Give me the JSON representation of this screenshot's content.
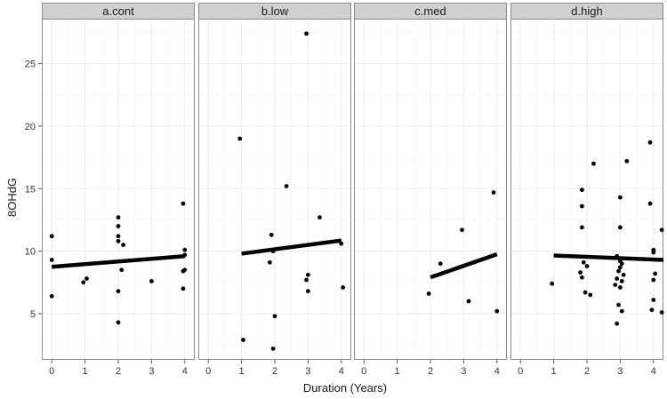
{
  "chart_data": {
    "type": "scatter",
    "faceted": true,
    "xlabel": "Duration (Years)",
    "ylabel": "8OHdG",
    "xlim": [
      -0.3,
      4.3
    ],
    "ylim": [
      1.3,
      28.6
    ],
    "x_ticks": [
      "0",
      "1",
      "2",
      "3",
      "4"
    ],
    "y_ticks": [
      "5",
      "10",
      "15",
      "20",
      "25"
    ],
    "grid": true,
    "legend": "none",
    "colors": {
      "point": "#000000",
      "line": "#000000",
      "strip": "#d0d0d0",
      "grid": "#ebebeb",
      "border": "#8c8c8c"
    },
    "panels": [
      {
        "label": "a.cont",
        "points": [
          [
            0.0,
            11.2
          ],
          [
            0.0,
            9.3
          ],
          [
            0.0,
            6.4
          ],
          [
            0.95,
            7.5
          ],
          [
            1.05,
            7.8
          ],
          [
            2.0,
            12.7
          ],
          [
            2.0,
            12.0
          ],
          [
            2.0,
            11.2
          ],
          [
            2.0,
            10.8
          ],
          [
            2.15,
            10.5
          ],
          [
            2.1,
            8.5
          ],
          [
            2.0,
            6.8
          ],
          [
            2.0,
            4.3
          ],
          [
            3.0,
            7.6
          ],
          [
            3.95,
            13.8
          ],
          [
            4.0,
            10.1
          ],
          [
            4.0,
            9.7
          ],
          [
            4.0,
            8.5
          ],
          [
            3.95,
            8.4
          ],
          [
            3.95,
            7.0
          ]
        ],
        "fit": [
          [
            0,
            8.75
          ],
          [
            4,
            9.6
          ]
        ]
      },
      {
        "label": "b.low",
        "points": [
          [
            0.95,
            19.0
          ],
          [
            1.05,
            2.9
          ],
          [
            1.9,
            11.3
          ],
          [
            1.95,
            10.0
          ],
          [
            1.85,
            9.1
          ],
          [
            2.0,
            4.8
          ],
          [
            1.95,
            2.2
          ],
          [
            2.35,
            15.2
          ],
          [
            2.95,
            27.4
          ],
          [
            3.0,
            8.1
          ],
          [
            2.95,
            7.7
          ],
          [
            3.0,
            6.8
          ],
          [
            3.35,
            12.7
          ],
          [
            4.0,
            10.6
          ],
          [
            4.05,
            7.1
          ]
        ],
        "fit": [
          [
            1,
            9.8
          ],
          [
            4,
            10.85
          ]
        ]
      },
      {
        "label": "c.med",
        "points": [
          [
            1.95,
            6.6
          ],
          [
            2.3,
            9.0
          ],
          [
            2.95,
            11.7
          ],
          [
            3.15,
            6.0
          ],
          [
            3.9,
            14.7
          ],
          [
            4.0,
            5.2
          ]
        ],
        "fit": [
          [
            2,
            7.9
          ],
          [
            4,
            9.75
          ]
        ]
      },
      {
        "label": "d.high",
        "points": [
          [
            0.95,
            7.4
          ],
          [
            1.85,
            14.9
          ],
          [
            1.85,
            13.6
          ],
          [
            1.85,
            11.9
          ],
          [
            2.2,
            17.0
          ],
          [
            1.9,
            9.1
          ],
          [
            2.0,
            8.8
          ],
          [
            1.8,
            8.3
          ],
          [
            1.85,
            7.9
          ],
          [
            1.95,
            6.7
          ],
          [
            2.1,
            6.5
          ],
          [
            3.0,
            14.3
          ],
          [
            3.2,
            17.2
          ],
          [
            3.0,
            11.9
          ],
          [
            2.9,
            9.6
          ],
          [
            3.0,
            9.2
          ],
          [
            3.05,
            9.0
          ],
          [
            3.0,
            8.7
          ],
          [
            2.95,
            8.4
          ],
          [
            3.1,
            8.1
          ],
          [
            2.9,
            7.8
          ],
          [
            3.05,
            7.6
          ],
          [
            2.85,
            7.3
          ],
          [
            3.0,
            7.1
          ],
          [
            2.95,
            5.7
          ],
          [
            3.05,
            5.2
          ],
          [
            2.9,
            4.2
          ],
          [
            3.9,
            18.7
          ],
          [
            3.9,
            13.8
          ],
          [
            4.0,
            10.1
          ],
          [
            4.0,
            9.9
          ],
          [
            4.25,
            11.7
          ],
          [
            4.05,
            8.2
          ],
          [
            4.0,
            7.7
          ],
          [
            4.0,
            6.1
          ],
          [
            3.95,
            5.3
          ],
          [
            4.25,
            5.1
          ]
        ],
        "fit": [
          [
            1,
            9.65
          ],
          [
            4.3,
            9.3
          ]
        ]
      }
    ]
  }
}
